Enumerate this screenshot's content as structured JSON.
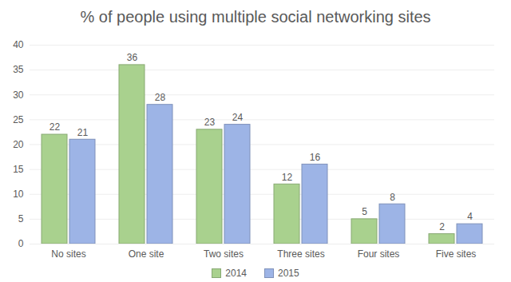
{
  "chart_data": {
    "type": "bar",
    "title": "% of people using multiple social networking sites",
    "categories": [
      "No sites",
      "One site",
      "Two sites",
      "Three sites",
      "Four sites",
      "Five sites"
    ],
    "series": [
      {
        "name": "2014",
        "color": "#a9d18e",
        "values": [
          22,
          36,
          23,
          12,
          5,
          2
        ]
      },
      {
        "name": "2015",
        "color": "#9db4e6",
        "values": [
          21,
          28,
          24,
          16,
          8,
          4
        ]
      }
    ],
    "ylim": [
      0,
      40
    ],
    "yticks": [
      0,
      5,
      10,
      15,
      20,
      25,
      30,
      35,
      40
    ],
    "grid": true,
    "data_labels": true,
    "legend": "bottom"
  }
}
